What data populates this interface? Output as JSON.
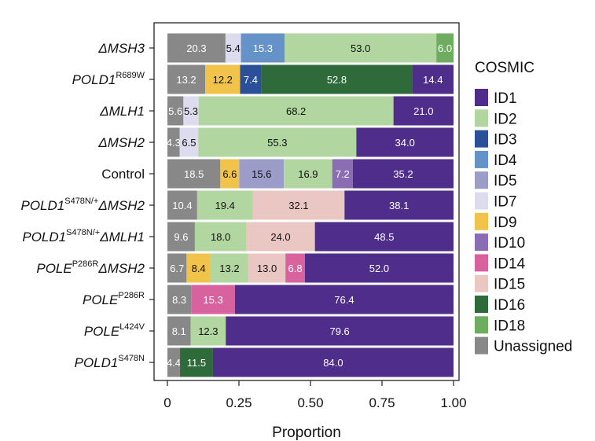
{
  "chart_data": {
    "type": "bar",
    "orientation": "horizontal",
    "stacked": true,
    "xlabel": "Proportion",
    "xlim": [
      0,
      1
    ],
    "xticks": [
      {
        "value": 0,
        "label": "0"
      },
      {
        "value": 0.25,
        "label": "0.25"
      },
      {
        "value": 0.5,
        "label": "0.50"
      },
      {
        "value": 0.75,
        "label": "0.75"
      },
      {
        "value": 1.0,
        "label": "1.00"
      }
    ],
    "legend": {
      "title": "COSMIC",
      "placement": "right",
      "entries": [
        {
          "key": "ID1",
          "label": "ID1",
          "color": "#4f2d8b"
        },
        {
          "key": "ID2",
          "label": "ID2",
          "color": "#b2d6a0"
        },
        {
          "key": "ID3",
          "label": "ID3",
          "color": "#2b4f99"
        },
        {
          "key": "ID4",
          "label": "ID4",
          "color": "#6593c9"
        },
        {
          "key": "ID5",
          "label": "ID5",
          "color": "#9b9dc8"
        },
        {
          "key": "ID7",
          "label": "ID7",
          "color": "#dcdcee"
        },
        {
          "key": "ID9",
          "label": "ID9",
          "color": "#f1c34a"
        },
        {
          "key": "ID10",
          "label": "ID10",
          "color": "#8a6db3"
        },
        {
          "key": "ID14",
          "label": "ID14",
          "color": "#d8629e"
        },
        {
          "key": "ID15",
          "label": "ID15",
          "color": "#ebc7c4"
        },
        {
          "key": "ID16",
          "label": "ID16",
          "color": "#2f6a3a"
        },
        {
          "key": "ID18",
          "label": "ID18",
          "color": "#6ead5f"
        },
        {
          "key": "Unassigned",
          "label": "Unassigned",
          "color": "#888888"
        }
      ]
    },
    "rows": [
      {
        "name": "ΔMSH3",
        "prefix": "ΔMSH3",
        "sup": "",
        "suffix": "",
        "segments": [
          {
            "sig": "Unassigned",
            "value": 20.3,
            "label": "20.3"
          },
          {
            "sig": "ID7",
            "value": 5.4,
            "label": "5.4"
          },
          {
            "sig": "ID4",
            "value": 15.3,
            "label": "15.3"
          },
          {
            "sig": "ID2",
            "value": 53.0,
            "label": "53.0"
          },
          {
            "sig": "ID18",
            "value": 6.0,
            "label": "6.0"
          }
        ]
      },
      {
        "name": "POLD1 R689W",
        "prefix": "POLD1",
        "sup": "R689W",
        "suffix": "",
        "segments": [
          {
            "sig": "Unassigned",
            "value": 13.2,
            "label": "13.2"
          },
          {
            "sig": "ID9",
            "value": 12.2,
            "label": "12.2"
          },
          {
            "sig": "ID3",
            "value": 7.4,
            "label": "7.4"
          },
          {
            "sig": "ID16",
            "value": 52.8,
            "label": "52.8"
          },
          {
            "sig": "ID1",
            "value": 14.4,
            "label": "14.4"
          }
        ]
      },
      {
        "name": "ΔMLH1",
        "prefix": "ΔMLH1",
        "sup": "",
        "suffix": "",
        "segments": [
          {
            "sig": "Unassigned",
            "value": 5.6,
            "label": "5.6"
          },
          {
            "sig": "ID7",
            "value": 5.3,
            "label": "5.3"
          },
          {
            "sig": "ID2",
            "value": 68.2,
            "label": "68.2"
          },
          {
            "sig": "ID1",
            "value": 21.0,
            "label": "21.0"
          }
        ]
      },
      {
        "name": "ΔMSH2",
        "prefix": "ΔMSH2",
        "sup": "",
        "suffix": "",
        "segments": [
          {
            "sig": "Unassigned",
            "value": 4.3,
            "label": "4.3"
          },
          {
            "sig": "ID7",
            "value": 6.5,
            "label": "6.5"
          },
          {
            "sig": "ID2",
            "value": 55.3,
            "label": "55.3"
          },
          {
            "sig": "ID1",
            "value": 34.0,
            "label": "34.0"
          }
        ]
      },
      {
        "name": "Control",
        "prefix": "Control",
        "sup": "",
        "suffix": "",
        "upright": true,
        "segments": [
          {
            "sig": "Unassigned",
            "value": 18.5,
            "label": "18.5"
          },
          {
            "sig": "ID9",
            "value": 6.6,
            "label": "6.6"
          },
          {
            "sig": "ID5",
            "value": 15.6,
            "label": "15.6"
          },
          {
            "sig": "ID2",
            "value": 16.9,
            "label": "16.9"
          },
          {
            "sig": "ID10",
            "value": 7.2,
            "label": "7.2"
          },
          {
            "sig": "ID1",
            "value": 35.2,
            "label": "35.2"
          }
        ]
      },
      {
        "name": "POLD1 S478N/+ ΔMSH2",
        "prefix": "POLD1",
        "sup": "S478N/+",
        "suffix": "ΔMSH2",
        "segments": [
          {
            "sig": "Unassigned",
            "value": 10.4,
            "label": "10.4"
          },
          {
            "sig": "ID2",
            "value": 19.4,
            "label": "19.4"
          },
          {
            "sig": "ID15",
            "value": 32.1,
            "label": "32.1"
          },
          {
            "sig": "ID1",
            "value": 38.1,
            "label": "38.1"
          }
        ]
      },
      {
        "name": "POLD1 S478N/+ ΔMLH1",
        "prefix": "POLD1",
        "sup": "S478N/+",
        "suffix": "ΔMLH1",
        "segments": [
          {
            "sig": "Unassigned",
            "value": 9.6,
            "label": "9.6"
          },
          {
            "sig": "ID2",
            "value": 18.0,
            "label": "18.0"
          },
          {
            "sig": "ID15",
            "value": 24.0,
            "label": "24.0"
          },
          {
            "sig": "ID1",
            "value": 48.5,
            "label": "48.5"
          }
        ]
      },
      {
        "name": "POLE P286R ΔMSH2",
        "prefix": "POLE",
        "sup": "P286R",
        "suffix": "ΔMSH2",
        "segments": [
          {
            "sig": "Unassigned",
            "value": 6.7,
            "label": "6.7"
          },
          {
            "sig": "ID9",
            "value": 8.4,
            "label": "8.4"
          },
          {
            "sig": "ID2",
            "value": 13.2,
            "label": "13.2"
          },
          {
            "sig": "ID15",
            "value": 13.0,
            "label": "13.0"
          },
          {
            "sig": "ID14",
            "value": 6.8,
            "label": "6.8"
          },
          {
            "sig": "ID1",
            "value": 52.0,
            "label": "52.0"
          }
        ]
      },
      {
        "name": "POLE P286R",
        "prefix": "POLE",
        "sup": "P286R",
        "suffix": "",
        "segments": [
          {
            "sig": "Unassigned",
            "value": 8.3,
            "label": "8.3"
          },
          {
            "sig": "ID14",
            "value": 15.3,
            "label": "15.3"
          },
          {
            "sig": "ID1",
            "value": 76.4,
            "label": "76.4"
          }
        ]
      },
      {
        "name": "POLE L424V",
        "prefix": "POLE",
        "sup": "L424V",
        "suffix": "",
        "segments": [
          {
            "sig": "Unassigned",
            "value": 8.1,
            "label": "8.1"
          },
          {
            "sig": "ID2",
            "value": 12.3,
            "label": "12.3"
          },
          {
            "sig": "ID1",
            "value": 79.6,
            "label": "79.6"
          }
        ]
      },
      {
        "name": "POLD1 S478N",
        "prefix": "POLD1",
        "sup": "S478N",
        "suffix": "",
        "segments": [
          {
            "sig": "Unassigned",
            "value": 4.4,
            "label": "4.4"
          },
          {
            "sig": "ID16",
            "value": 11.5,
            "label": "11.5"
          },
          {
            "sig": "ID1",
            "value": 84.0,
            "label": "84.0"
          }
        ]
      }
    ]
  }
}
